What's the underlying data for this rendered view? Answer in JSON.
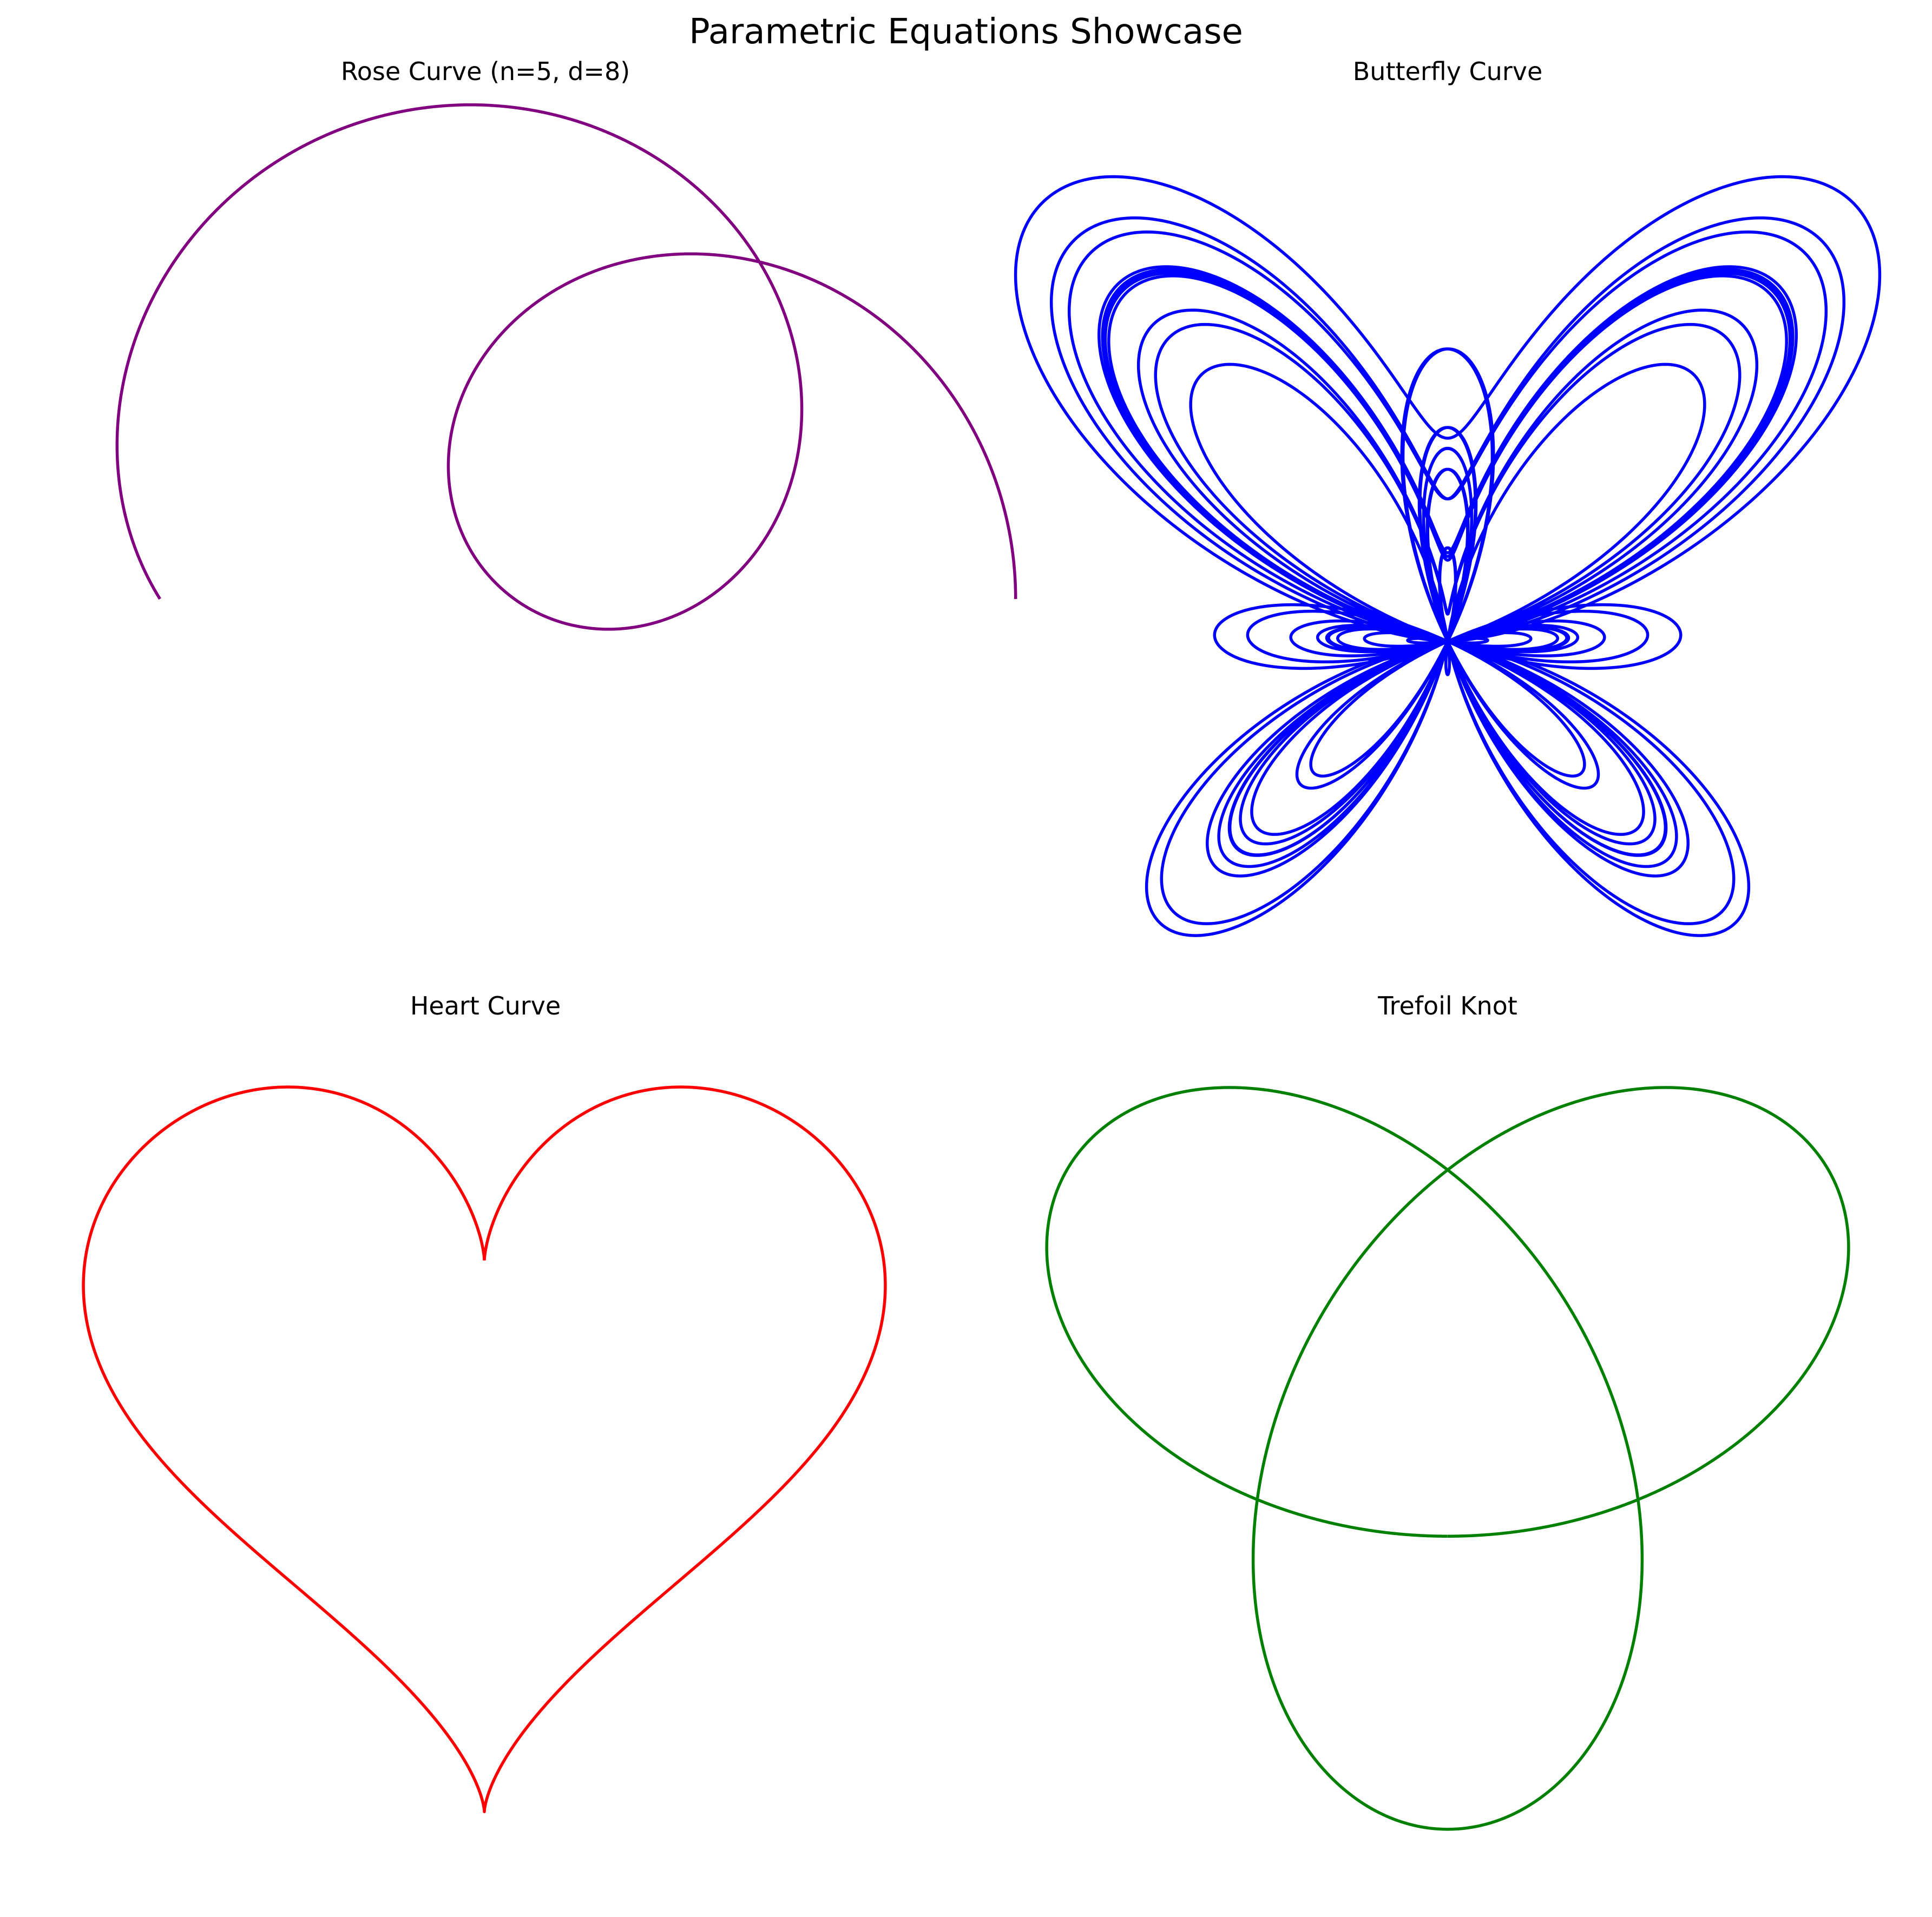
{
  "title": "Parametric Equations Showcase",
  "chart_data": [
    {
      "type": "line",
      "panel": "top-left",
      "title": "Rose Curve (n=5, d=8)",
      "equation": {
        "x": "cos(k t) cos(t)",
        "y": "cos(k t) sin(t)",
        "k": 0.625,
        "t_range": [
          0,
          6.283
        ]
      },
      "xlim": [
        -0.94,
        0.82
      ],
      "ylim": [
        -0.65,
        1.0
      ],
      "color": "#800080",
      "axis": "off"
    },
    {
      "type": "line",
      "panel": "top-right",
      "title": "Butterfly Curve",
      "equation": {
        "x": "sin(t) (e^cos(t) - 2 cos(4t) - sin^5(t/12))",
        "y": "cos(t) (e^cos(t) - 2 cos(4t) - sin^5(t/12))",
        "t_range": [
          0,
          75.398
        ]
      },
      "xlim": [
        -3.5,
        3.5
      ],
      "ylim": [
        -2.4,
        4.6
      ],
      "color": "#0000ff",
      "axis": "off"
    },
    {
      "type": "line",
      "panel": "bottom-left",
      "title": "Heart Curve",
      "equation": {
        "x": "16 sin^3(t)",
        "y": "13 cos(t) - 5 cos(2t) - 2 cos(3t) - cos(4t)",
        "t_range": [
          0,
          6.283
        ]
      },
      "xlim": [
        -17.6,
        17.6
      ],
      "ylim": [
        -18.3,
        13.6
      ],
      "color": "#ff0000",
      "axis": "off"
    },
    {
      "type": "line",
      "panel": "bottom-right",
      "title": "Trefoil Knot",
      "equation": {
        "x": "sin(t) + 2 sin(2t)",
        "y": "cos(t) - 2 cos(2t)",
        "t_range": [
          0,
          6.283
        ]
      },
      "xlim": [
        -2.85,
        2.85
      ],
      "ylim": [
        -3.2,
        2.45
      ],
      "color": "#008000",
      "axis": "off"
    }
  ]
}
